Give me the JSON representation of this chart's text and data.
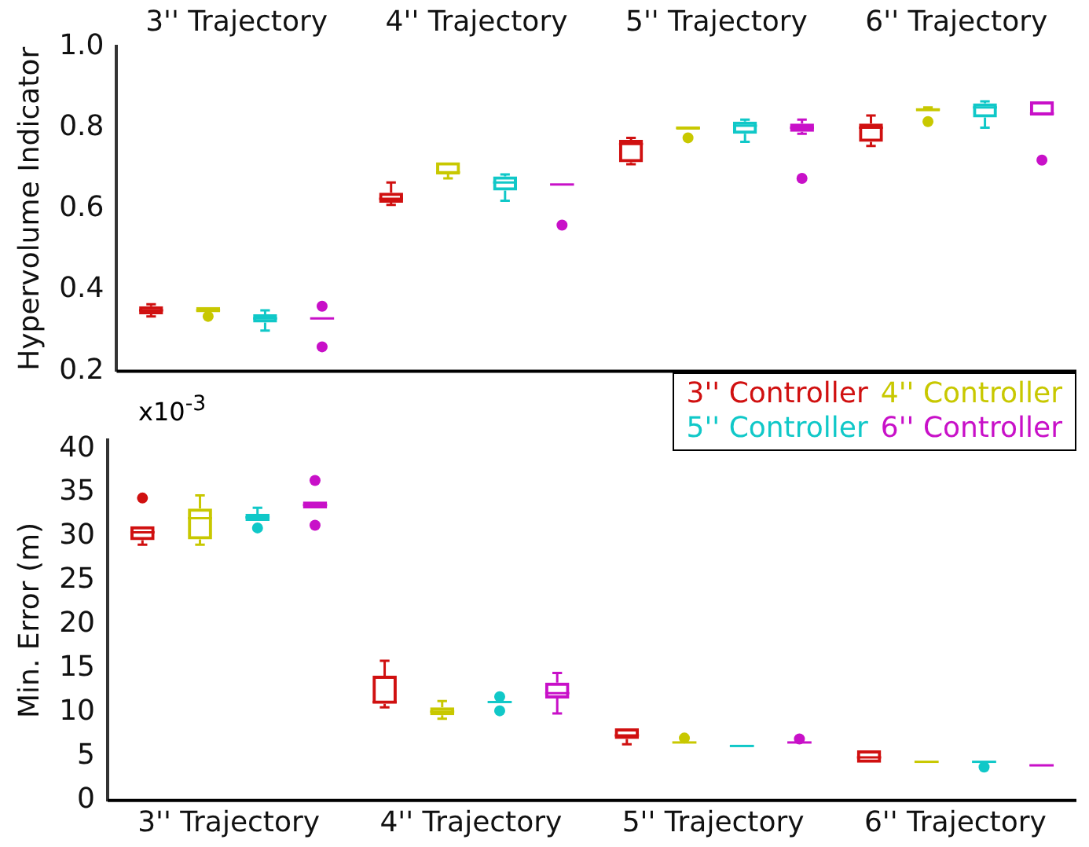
{
  "chart_data": [
    {
      "type": "box",
      "ylabel": "Hypervolume Indicator",
      "categories": [
        "3'' Trajectory",
        "4'' Trajectory",
        "5'' Trajectory",
        "6'' Trajectory"
      ],
      "ylim": [
        0.2,
        1.0
      ],
      "yticks": [
        {
          "value": 0.2,
          "label": "0.2"
        },
        {
          "value": 0.4,
          "label": "0.4"
        },
        {
          "value": 0.6,
          "label": "0.6"
        },
        {
          "value": 0.8,
          "label": "0.8"
        },
        {
          "value": 1.0,
          "label": "1.0"
        }
      ],
      "grid": false,
      "legend": false,
      "series": [
        {
          "color": "#d01010",
          "boxes": [
            {
              "low": 0.335,
              "q1": 0.34,
              "median": 0.35,
              "q3": 0.36,
              "high": 0.365
            },
            {
              "low": 0.61,
              "q1": 0.615,
              "median": 0.625,
              "q3": 0.64,
              "high": 0.665
            },
            {
              "low": 0.71,
              "q1": 0.715,
              "median": 0.76,
              "q3": 0.77,
              "high": 0.775
            },
            {
              "low": 0.755,
              "q1": 0.765,
              "median": 0.8,
              "q3": 0.81,
              "high": 0.83
            }
          ]
        },
        {
          "color": "#c8c800",
          "boxes": [
            {
              "low": 0.345,
              "q1": 0.345,
              "median": 0.35,
              "q3": 0.358,
              "high": 0.358,
              "outliers": [
                0.335
              ]
            },
            {
              "low": 0.675,
              "q1": 0.685,
              "median": 0.69,
              "q3": 0.715,
              "high": 0.715
            },
            {
              "low": 0.795,
              "q1": 0.795,
              "median": 0.8,
              "q3": 0.8,
              "high": 0.8,
              "outliers": [
                0.775
              ]
            },
            {
              "low": 0.84,
              "q1": 0.84,
              "median": 0.845,
              "q3": 0.845,
              "high": 0.85,
              "outliers": [
                0.815
              ]
            }
          ]
        },
        {
          "color": "#10c8c8",
          "boxes": [
            {
              "low": 0.3,
              "q1": 0.32,
              "median": 0.33,
              "q3": 0.34,
              "high": 0.35
            },
            {
              "low": 0.62,
              "q1": 0.645,
              "median": 0.665,
              "q3": 0.68,
              "high": 0.685
            },
            {
              "low": 0.765,
              "q1": 0.785,
              "median": 0.805,
              "q3": 0.815,
              "high": 0.82
            },
            {
              "low": 0.8,
              "q1": 0.825,
              "median": 0.85,
              "q3": 0.86,
              "high": 0.865
            }
          ]
        },
        {
          "color": "#c810c8",
          "boxes": [
            {
              "low": 0.33,
              "q1": 0.33,
              "median": 0.33,
              "q3": 0.33,
              "high": 0.33,
              "outliers": [
                0.36,
                0.26
              ]
            },
            {
              "low": 0.66,
              "q1": 0.66,
              "median": 0.66,
              "q3": 0.66,
              "high": 0.66,
              "outliers": [
                0.56
              ]
            },
            {
              "low": 0.785,
              "q1": 0.79,
              "median": 0.8,
              "q3": 0.81,
              "high": 0.82,
              "outliers": [
                0.675
              ]
            },
            {
              "low": 0.83,
              "q1": 0.83,
              "median": 0.835,
              "q3": 0.865,
              "high": 0.865,
              "outliers": [
                0.72
              ]
            }
          ]
        }
      ]
    },
    {
      "type": "box",
      "ylabel": "Min. Error (m)",
      "annotations": [
        "x10$^{-3}$"
      ],
      "categories": [
        "3'' Trajectory",
        "4'' Trajectory",
        "5'' Trajectory",
        "6'' Trajectory"
      ],
      "ylim": [
        0,
        41
      ],
      "yticks": [
        0,
        5,
        10,
        15,
        20,
        25,
        30,
        35,
        40
      ],
      "grid": false,
      "legend": "top right",
      "series": [
        {
          "name": "3'' Controller",
          "color": "#d01010",
          "boxes": [
            {
              "low": 29.1,
              "q1": 29.6,
              "median": 30.5,
              "q3": 31.2,
              "high": 31.2,
              "outliers": [
                34.4
              ]
            },
            {
              "low": 10.6,
              "q1": 11.0,
              "median": 11.2,
              "q3": 14.2,
              "high": 15.9
            },
            {
              "low": 6.4,
              "q1": 7.0,
              "median": 7.4,
              "q3": 8.2,
              "high": 8.2
            },
            {
              "low": 4.3,
              "q1": 4.3,
              "median": 4.9,
              "q3": 5.7,
              "high": 5.7
            }
          ]
        },
        {
          "name": "4'' Controller",
          "color": "#c8c800",
          "boxes": [
            {
              "low": 29.1,
              "q1": 29.7,
              "median": 32.1,
              "q3": 33.2,
              "high": 34.7
            },
            {
              "low": 9.3,
              "q1": 9.7,
              "median": 10.1,
              "q3": 10.6,
              "high": 11.3
            },
            {
              "low": 6.6,
              "q1": 6.6,
              "median": 6.6,
              "q3": 6.6,
              "high": 6.6,
              "outliers": [
                7.1
              ]
            },
            {
              "low": 4.4,
              "q1": 4.4,
              "median": 4.4,
              "q3": 4.4,
              "high": 4.4
            }
          ]
        },
        {
          "name": "5'' Controller",
          "color": "#10c8c8",
          "boxes": [
            {
              "low": 31.8,
              "q1": 31.8,
              "median": 32.2,
              "q3": 32.6,
              "high": 33.3,
              "outliers": [
                31.0
              ]
            },
            {
              "low": 11.2,
              "q1": 11.2,
              "median": 11.2,
              "q3": 11.2,
              "high": 11.2,
              "outliers": [
                11.8,
                10.2
              ]
            },
            {
              "low": 6.2,
              "q1": 6.2,
              "median": 6.2,
              "q3": 6.2,
              "high": 6.2
            },
            {
              "low": 4.4,
              "q1": 4.4,
              "median": 4.4,
              "q3": 4.4,
              "high": 4.4,
              "outliers": [
                3.8
              ]
            }
          ]
        },
        {
          "name": "6'' Controller",
          "color": "#c810c8",
          "boxes": [
            {
              "low": 33.2,
              "q1": 33.2,
              "median": 33.6,
              "q3": 34.0,
              "high": 34.0,
              "outliers": [
                36.4,
                31.3
              ]
            },
            {
              "low": 9.9,
              "q1": 11.6,
              "median": 12.2,
              "q3": 13.4,
              "high": 14.5
            },
            {
              "low": 6.6,
              "q1": 6.6,
              "median": 6.6,
              "q3": 6.6,
              "high": 6.6,
              "outliers": [
                7.0
              ]
            },
            {
              "low": 3.9,
              "q1": 3.9,
              "median": 4.0,
              "q3": 4.1,
              "high": 4.1
            }
          ]
        }
      ]
    }
  ]
}
